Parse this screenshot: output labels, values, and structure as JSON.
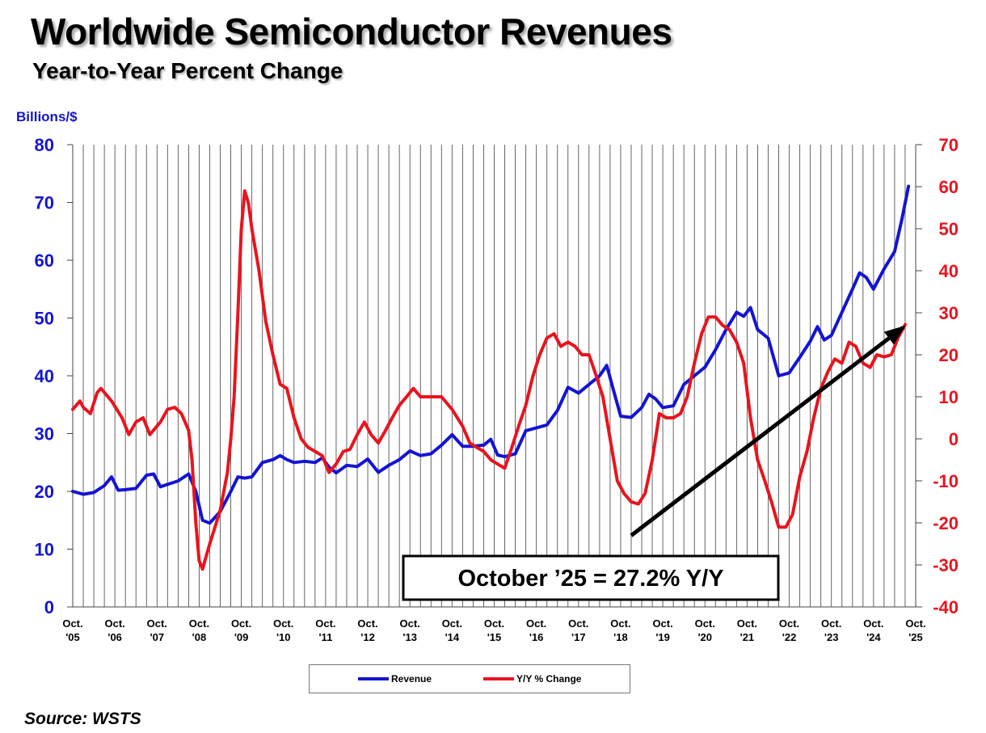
{
  "title": "Worldwide Semiconductor Revenues",
  "subtitle": "Year-to-Year Percent Change",
  "source": "Source: WSTS",
  "colors": {
    "revenue": "#1414d2",
    "yy": "#e8141e",
    "grid": "#555555",
    "arrow": "#000000"
  },
  "chart_data": {
    "type": "line",
    "left_axis_label": "Billions/$",
    "y_left": {
      "min": 0,
      "max": 80,
      "ticks": [
        "0",
        "10",
        "20",
        "30",
        "40",
        "50",
        "60",
        "70",
        "80"
      ]
    },
    "y_right": {
      "min": -40,
      "max": 70,
      "ticks": [
        "-40",
        "-30",
        "-20",
        "-10",
        "0",
        "10",
        "20",
        "30",
        "40",
        "50",
        "60",
        "70"
      ]
    },
    "x_range": [
      2005.75,
      2025.75
    ],
    "x_ticks": [
      {
        "top": "Oct.",
        "bottom": "'05"
      },
      {
        "top": "Oct.",
        "bottom": "'06"
      },
      {
        "top": "Oct.",
        "bottom": "'07"
      },
      {
        "top": "Oct.",
        "bottom": "'08"
      },
      {
        "top": "Oct.",
        "bottom": "'09"
      },
      {
        "top": "Oct.",
        "bottom": "'10"
      },
      {
        "top": "Oct.",
        "bottom": "'11"
      },
      {
        "top": "Oct.",
        "bottom": "'12"
      },
      {
        "top": "Oct.",
        "bottom": "'13"
      },
      {
        "top": "Oct.",
        "bottom": "'14"
      },
      {
        "top": "Oct.",
        "bottom": "'15"
      },
      {
        "top": "Oct.",
        "bottom": "'16"
      },
      {
        "top": "Oct.",
        "bottom": "'17"
      },
      {
        "top": "Oct.",
        "bottom": "'18"
      },
      {
        "top": "Oct.",
        "bottom": "'19"
      },
      {
        "top": "Oct.",
        "bottom": "'20"
      },
      {
        "top": "Oct.",
        "bottom": "'21"
      },
      {
        "top": "Oct.",
        "bottom": "'22"
      },
      {
        "top": "Oct.",
        "bottom": "'23"
      },
      {
        "top": "Oct.",
        "bottom": "'24"
      },
      {
        "top": "Oct.",
        "bottom": "'25"
      }
    ],
    "series": [
      {
        "name": "Revenue",
        "axis": "left",
        "points": [
          [
            2005.75,
            20
          ],
          [
            2006.0,
            19.5
          ],
          [
            2006.25,
            19.8
          ],
          [
            2006.5,
            21
          ],
          [
            2006.67,
            22.5
          ],
          [
            2006.83,
            20.2
          ],
          [
            2007.0,
            20.3
          ],
          [
            2007.25,
            20.5
          ],
          [
            2007.5,
            22.8
          ],
          [
            2007.67,
            23
          ],
          [
            2007.83,
            20.8
          ],
          [
            2008.0,
            21.2
          ],
          [
            2008.25,
            21.8
          ],
          [
            2008.5,
            23
          ],
          [
            2008.67,
            20
          ],
          [
            2008.83,
            15
          ],
          [
            2009.0,
            14.5
          ],
          [
            2009.25,
            16.5
          ],
          [
            2009.5,
            20
          ],
          [
            2009.67,
            22.5
          ],
          [
            2009.83,
            22.3
          ],
          [
            2010.0,
            22.5
          ],
          [
            2010.25,
            25
          ],
          [
            2010.5,
            25.5
          ],
          [
            2010.67,
            26.2
          ],
          [
            2010.83,
            25.5
          ],
          [
            2011.0,
            25
          ],
          [
            2011.25,
            25.2
          ],
          [
            2011.5,
            25
          ],
          [
            2011.67,
            25.8
          ],
          [
            2011.83,
            24.2
          ],
          [
            2012.0,
            23.2
          ],
          [
            2012.25,
            24.5
          ],
          [
            2012.5,
            24.3
          ],
          [
            2012.75,
            25.6
          ],
          [
            2013.0,
            23.3
          ],
          [
            2013.25,
            24.5
          ],
          [
            2013.5,
            25.5
          ],
          [
            2013.75,
            27
          ],
          [
            2014.0,
            26.2
          ],
          [
            2014.25,
            26.5
          ],
          [
            2014.5,
            28
          ],
          [
            2014.75,
            29.8
          ],
          [
            2015.0,
            27.8
          ],
          [
            2015.25,
            27.8
          ],
          [
            2015.5,
            28
          ],
          [
            2015.67,
            29
          ],
          [
            2015.83,
            26.3
          ],
          [
            2016.0,
            26
          ],
          [
            2016.25,
            26.5
          ],
          [
            2016.5,
            30.5
          ],
          [
            2016.75,
            31
          ],
          [
            2017.0,
            31.5
          ],
          [
            2017.25,
            34
          ],
          [
            2017.5,
            38
          ],
          [
            2017.75,
            37
          ],
          [
            2018.0,
            38.5
          ],
          [
            2018.25,
            40
          ],
          [
            2018.42,
            41.8
          ],
          [
            2018.58,
            37.5
          ],
          [
            2018.75,
            33
          ],
          [
            2019.0,
            32.8
          ],
          [
            2019.25,
            34.5
          ],
          [
            2019.42,
            36.8
          ],
          [
            2019.58,
            36
          ],
          [
            2019.75,
            34.5
          ],
          [
            2020.0,
            34.8
          ],
          [
            2020.25,
            38.5
          ],
          [
            2020.5,
            40
          ],
          [
            2020.75,
            41.5
          ],
          [
            2021.0,
            44.5
          ],
          [
            2021.25,
            48
          ],
          [
            2021.5,
            51
          ],
          [
            2021.67,
            50.3
          ],
          [
            2021.83,
            51.8
          ],
          [
            2022.0,
            48
          ],
          [
            2022.25,
            46.5
          ],
          [
            2022.5,
            40
          ],
          [
            2022.75,
            40.5
          ],
          [
            2023.0,
            43.2
          ],
          [
            2023.25,
            46
          ],
          [
            2023.42,
            48.5
          ],
          [
            2023.58,
            46.2
          ],
          [
            2023.75,
            47
          ],
          [
            2024.0,
            51
          ],
          [
            2024.25,
            55
          ],
          [
            2024.42,
            57.8
          ],
          [
            2024.58,
            57
          ],
          [
            2024.75,
            55
          ],
          [
            2025.0,
            58.5
          ],
          [
            2025.25,
            61.5
          ],
          [
            2025.42,
            67
          ],
          [
            2025.58,
            72.8
          ]
        ]
      },
      {
        "name": "Y/Y % Change",
        "axis": "right",
        "points": [
          [
            2005.75,
            7
          ],
          [
            2005.92,
            9
          ],
          [
            2006.0,
            7.5
          ],
          [
            2006.17,
            6
          ],
          [
            2006.33,
            11
          ],
          [
            2006.42,
            12
          ],
          [
            2006.67,
            9
          ],
          [
            2006.92,
            5
          ],
          [
            2007.08,
            1
          ],
          [
            2007.25,
            4
          ],
          [
            2007.42,
            5
          ],
          [
            2007.58,
            1
          ],
          [
            2007.83,
            4
          ],
          [
            2008.0,
            7
          ],
          [
            2008.17,
            7.5
          ],
          [
            2008.33,
            6
          ],
          [
            2008.5,
            2
          ],
          [
            2008.58,
            -5
          ],
          [
            2008.67,
            -20
          ],
          [
            2008.75,
            -29
          ],
          [
            2008.83,
            -31
          ],
          [
            2009.0,
            -25
          ],
          [
            2009.25,
            -17
          ],
          [
            2009.42,
            -8
          ],
          [
            2009.5,
            0
          ],
          [
            2009.58,
            10
          ],
          [
            2009.67,
            30
          ],
          [
            2009.75,
            50
          ],
          [
            2009.83,
            59
          ],
          [
            2009.92,
            56
          ],
          [
            2010.0,
            50
          ],
          [
            2010.17,
            40
          ],
          [
            2010.33,
            28
          ],
          [
            2010.5,
            20
          ],
          [
            2010.67,
            13
          ],
          [
            2010.83,
            12
          ],
          [
            2011.0,
            5
          ],
          [
            2011.17,
            0
          ],
          [
            2011.33,
            -2
          ],
          [
            2011.5,
            -3
          ],
          [
            2011.67,
            -4
          ],
          [
            2011.83,
            -8
          ],
          [
            2012.0,
            -6
          ],
          [
            2012.17,
            -3
          ],
          [
            2012.33,
            -2.5
          ],
          [
            2012.5,
            1
          ],
          [
            2012.67,
            4
          ],
          [
            2012.83,
            1
          ],
          [
            2013.0,
            -1
          ],
          [
            2013.17,
            2
          ],
          [
            2013.33,
            5
          ],
          [
            2013.5,
            8
          ],
          [
            2013.67,
            10
          ],
          [
            2013.83,
            12
          ],
          [
            2014.0,
            10
          ],
          [
            2014.25,
            10
          ],
          [
            2014.5,
            10
          ],
          [
            2014.75,
            7
          ],
          [
            2015.0,
            3
          ],
          [
            2015.17,
            -1
          ],
          [
            2015.33,
            -2
          ],
          [
            2015.5,
            -3
          ],
          [
            2015.67,
            -5
          ],
          [
            2015.83,
            -6
          ],
          [
            2016.0,
            -7
          ],
          [
            2016.17,
            -2
          ],
          [
            2016.33,
            3
          ],
          [
            2016.5,
            8
          ],
          [
            2016.67,
            15
          ],
          [
            2016.83,
            20
          ],
          [
            2017.0,
            24
          ],
          [
            2017.17,
            25
          ],
          [
            2017.33,
            22
          ],
          [
            2017.5,
            23
          ],
          [
            2017.67,
            22
          ],
          [
            2017.83,
            20
          ],
          [
            2018.0,
            20
          ],
          [
            2018.17,
            15
          ],
          [
            2018.33,
            10
          ],
          [
            2018.5,
            0
          ],
          [
            2018.67,
            -10
          ],
          [
            2018.83,
            -13
          ],
          [
            2019.0,
            -15
          ],
          [
            2019.17,
            -15.5
          ],
          [
            2019.33,
            -13
          ],
          [
            2019.5,
            -5
          ],
          [
            2019.67,
            6
          ],
          [
            2019.83,
            5
          ],
          [
            2020.0,
            5
          ],
          [
            2020.17,
            6
          ],
          [
            2020.33,
            10
          ],
          [
            2020.5,
            18
          ],
          [
            2020.67,
            25
          ],
          [
            2020.83,
            29
          ],
          [
            2021.0,
            29
          ],
          [
            2021.17,
            27
          ],
          [
            2021.33,
            26
          ],
          [
            2021.5,
            23
          ],
          [
            2021.67,
            18
          ],
          [
            2021.83,
            5
          ],
          [
            2022.0,
            -5
          ],
          [
            2022.17,
            -10
          ],
          [
            2022.33,
            -15
          ],
          [
            2022.5,
            -21
          ],
          [
            2022.67,
            -21
          ],
          [
            2022.83,
            -18
          ],
          [
            2023.0,
            -9
          ],
          [
            2023.17,
            -3
          ],
          [
            2023.33,
            5
          ],
          [
            2023.5,
            12
          ],
          [
            2023.67,
            16
          ],
          [
            2023.83,
            19
          ],
          [
            2024.0,
            18
          ],
          [
            2024.17,
            23
          ],
          [
            2024.33,
            22
          ],
          [
            2024.5,
            18
          ],
          [
            2024.67,
            17
          ],
          [
            2024.83,
            20
          ],
          [
            2025.0,
            19.5
          ],
          [
            2025.17,
            20
          ],
          [
            2025.33,
            24
          ],
          [
            2025.5,
            27.2
          ]
        ]
      }
    ],
    "annotation": {
      "text": "October ’25 = 27.2% Y/Y",
      "arrow_from": [
        2019.0,
        -23
      ],
      "arrow_to": [
        2025.45,
        26.5
      ]
    },
    "grid": true,
    "legend": "bottom-center"
  }
}
